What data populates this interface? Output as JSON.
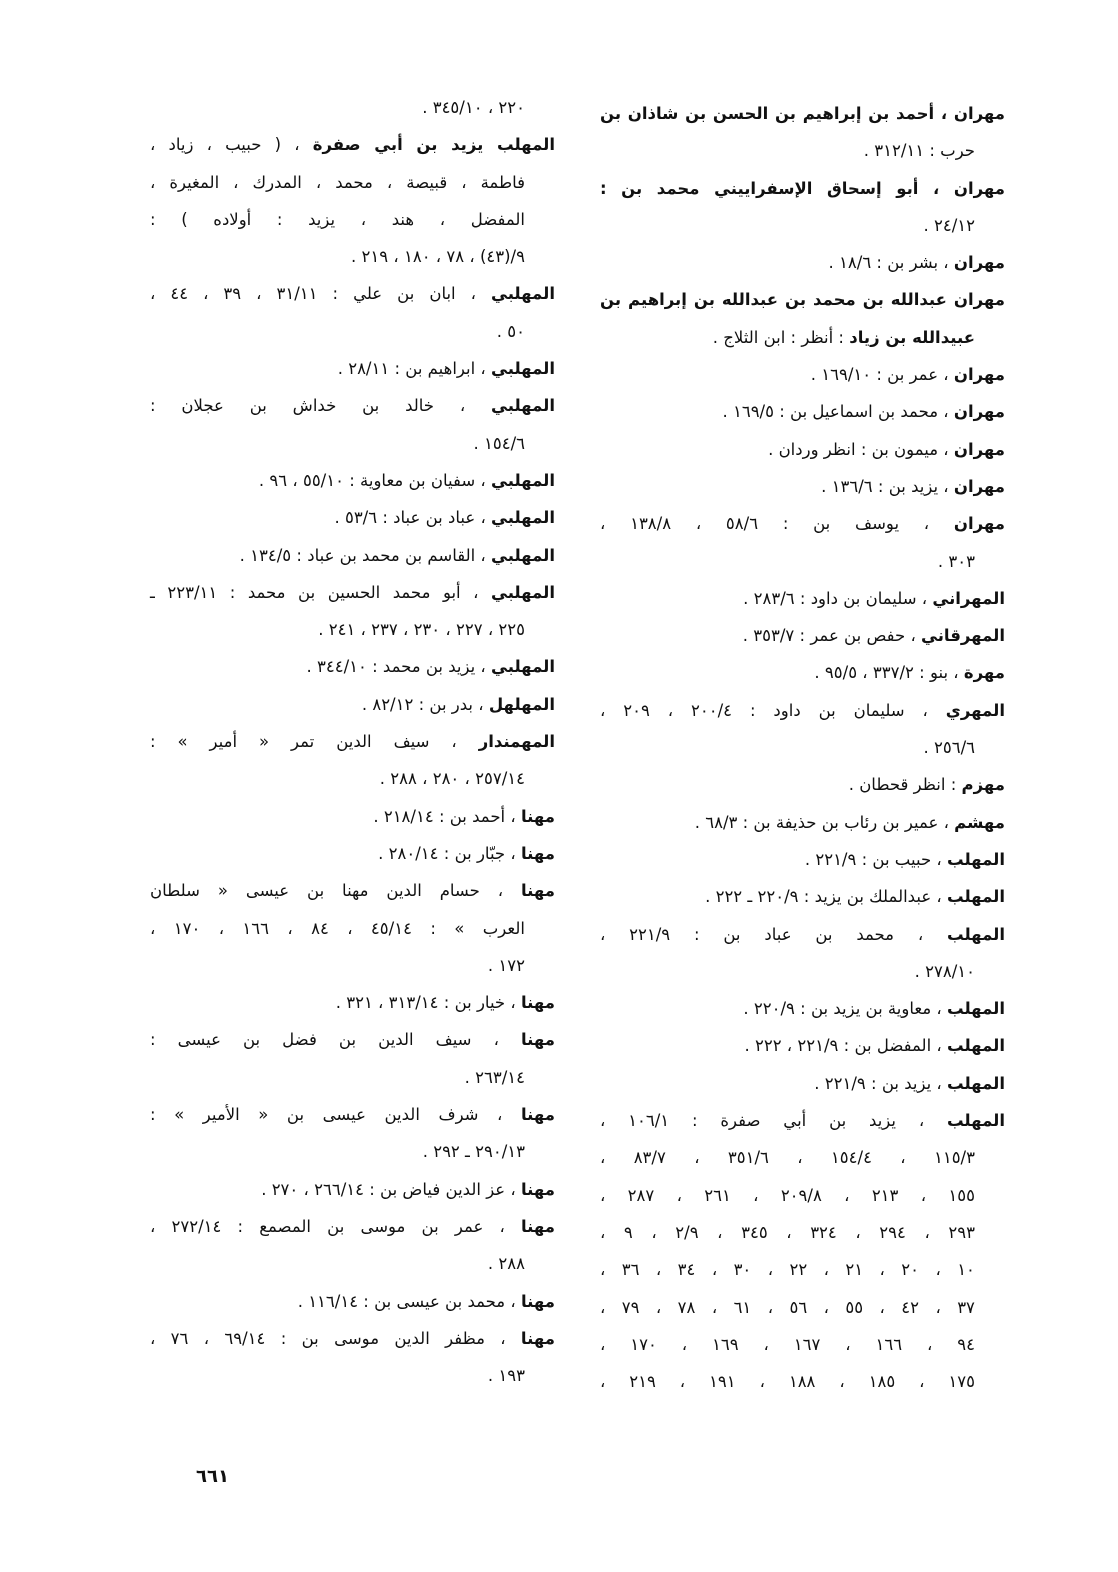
{
  "columns": {
    "right": [
      {
        "head": "مهران ، أحمد بن إبراهيم بن الحسن بن شاذان بن",
        "text": "",
        "cont": [
          "حرب : ٣١٢/١١ ."
        ]
      },
      {
        "head": "مهران ، أبو إسحاق الإسفراييني محمد بن :",
        "text": "",
        "cont": [
          "٢٤/١٢ ."
        ]
      },
      {
        "head": "مهران",
        "text": " ، بشر بن : ١٨/٦ .",
        "cont": []
      },
      {
        "head": "مهران عبدالله بن محمد بن عبدالله بن إبراهيم بن",
        "text": "",
        "cont": [
          {
            "b": "عبيدالله بن زياد",
            "t": " : أنظر : ابن الثلاج ."
          }
        ]
      },
      {
        "head": "مهران",
        "text": " ، عمر بن : ١٦٩/١٠ .",
        "cont": []
      },
      {
        "head": "مهران",
        "text": " ، محمد بن اسماعيل بن : ١٦٩/٥ .",
        "cont": []
      },
      {
        "head": "مهران",
        "text": " ، ميمون بن : انظر وردان .",
        "cont": []
      },
      {
        "head": "مهران",
        "text": " ، يزيد بن : ١٣٦/٦ .",
        "cont": []
      },
      {
        "head": "مهران",
        "text": " ، يوسف بن : ٥٨/٦ ، ١٣٨/٨ ،",
        "cont": [
          "٣٠٣ ."
        ]
      },
      {
        "head": "المهراني",
        "text": " ، سليمان بن داود : ٢٨٣/٦ .",
        "cont": []
      },
      {
        "head": "المهرقاني",
        "text": " ، حفص بن عمر : ٣٥٣/٧ .",
        "cont": []
      },
      {
        "head": "مهرة",
        "text": " ، بنو : ٣٣٧/٢ ، ٩٥/٥ .",
        "cont": []
      },
      {
        "head": "المهري",
        "text": " ، سليمان بن داود : ٢٠٠/٤ ، ٢٠٩ ،",
        "cont": [
          "٢٥٦/٦ ."
        ]
      },
      {
        "head": "مهزم",
        "text": " : انظر قحطان .",
        "cont": []
      },
      {
        "head": "مهشم",
        "text": " ، عمير بن رئاب بن حذيفة بن : ٦٨/٣ .",
        "cont": []
      },
      {
        "head": "المهلب",
        "text": " ، حبيب بن : ٢٢١/٩ .",
        "cont": []
      },
      {
        "head": "المهلب",
        "text": " ، عبدالملك بن يزيد : ٢٢٠/٩ ـ ٢٢٢ .",
        "cont": []
      },
      {
        "head": "المهلب",
        "text": " ، محمد بن عباد بن : ٢٢١/٩ ،",
        "cont": [
          "٢٧٨/١٠ ."
        ]
      },
      {
        "head": "المهلب",
        "text": " ، معاوية بن يزيد بن : ٢٢٠/٩ .",
        "cont": []
      },
      {
        "head": "المهلب",
        "text": " ، المفضل بن : ٢٢١/٩ ، ٢٢٢ .",
        "cont": []
      },
      {
        "head": "المهلب",
        "text": " ، يزيد بن : ٢٢١/٩ .",
        "cont": []
      },
      {
        "head": "المهلب",
        "text": " ، يزيد بن أبي صفرة : ١٠٦/١ ،",
        "cont": [
          "١١٥/٣ ، ١٥٤/٤ ، ٣٥١/٦ ، ٨٣/٧ ،",
          "١٥٥ ، ٢١٣ ، ٢٠٩/٨ ، ٢٦١ ، ٢٨٧ ،",
          "٢٩٣ ، ٢٩٤ ، ٣٢٤ ، ٣٤٥ ، ٢/٩ ، ٩ ،",
          "١٠ ، ٢٠ ، ٢١ ، ٢٢ ، ٣٠ ، ٣٤ ، ٣٦ ،",
          "٣٧ ، ٤٢ ، ٥٥ ، ٥٦ ، ٦١ ، ٧٨ ، ٧٩ ،",
          "٩٤ ، ١٦٦ ، ١٦٧ ، ١٦٩ ، ١٧٠ ،",
          "١٧٥ ، ١٨٥ ، ١٨٨ ، ١٩١ ، ٢١٩ ،"
        ]
      }
    ],
    "left": [
      {
        "head": "",
        "text": "",
        "cont": [
          "٢٢٠ ، ٣٤٥/١٠ ."
        ]
      },
      {
        "head": "المهلب يزيد بن أبي صفرة",
        "text": " ، ( حبيب ، زياد ،",
        "cont": [
          "فاطمة ، قبيصة ، محمد ، المدرك ، المغيرة ،",
          "المفضل ، هند ، يزيد : أولاده ) :",
          "٩/(٤٣) ، ٧٨ ، ١٨٠ ، ٢١٩ ."
        ]
      },
      {
        "head": "المهلبي",
        "text": " ، ابان بن علي : ٣١/١١ ، ٣٩ ، ٤٤ ،",
        "cont": [
          "٥٠ ."
        ]
      },
      {
        "head": "المهلبي",
        "text": " ، ابراهيم بن : ٢٨/١١ .",
        "cont": []
      },
      {
        "head": "المهلبي",
        "text": " ، خالد بن خداش بن عجلان :",
        "cont": [
          "١٥٤/٦ ."
        ]
      },
      {
        "head": "المهلبي",
        "text": " ، سفيان بن معاوية : ٥٥/١٠ ، ٩٦ .",
        "cont": []
      },
      {
        "head": "المهلبي",
        "text": " ، عباد بن عباد : ٥٣/٦ .",
        "cont": []
      },
      {
        "head": "المهلبي",
        "text": " ، القاسم بن محمد بن عباد : ١٣٤/٥ .",
        "cont": []
      },
      {
        "head": "المهلبي",
        "text": " ، أبو محمد الحسين بن محمد : ٢٢٣/١١ ـ",
        "cont": [
          "٢٢٥ ، ٢٢٧ ، ٢٣٠ ، ٢٣٧ ، ٢٤١ ."
        ]
      },
      {
        "head": "المهلبي",
        "text": " ، يزيد بن محمد : ٣٤٤/١٠ .",
        "cont": []
      },
      {
        "head": "المهلهل",
        "text": " ، بدر بن : ٨٢/١٢ .",
        "cont": []
      },
      {
        "head": "المهمندار",
        "text": " ، سيف الدين تمر « أمير » :",
        "cont": [
          "٢٥٧/١٤ ، ٢٨٠ ، ٢٨٨ ."
        ]
      },
      {
        "head": "مهنا",
        "text": " ، أحمد بن : ٢١٨/١٤ .",
        "cont": []
      },
      {
        "head": "مهنا",
        "text": " ، جبّار بن : ٢٨٠/١٤ .",
        "cont": []
      },
      {
        "head": "مهنا",
        "text": " ، حسام الدين مهنا بن عيسى « سلطان",
        "cont": [
          "العرب » : ٤٥/١٤ ، ٨٤ ، ١٦٦ ، ١٧٠ ،",
          "١٧٢ ."
        ]
      },
      {
        "head": "مهنا",
        "text": " ، خيار بن : ٣١٣/١٤ ، ٣٢١ .",
        "cont": []
      },
      {
        "head": "مهنا",
        "text": " ، سيف الدين بن فضل بن عيسى :",
        "cont": [
          "٢٦٣/١٤ ."
        ]
      },
      {
        "head": "مهنا",
        "text": " ، شرف الدين عيسى بن « الأمير » :",
        "cont": [
          "٢٩٠/١٣ ـ ٢٩٢ ."
        ]
      },
      {
        "head": "مهنا",
        "text": " ، عز الدين فياض بن : ٢٦٦/١٤ ، ٢٧٠ .",
        "cont": []
      },
      {
        "head": "مهنا",
        "text": " ، عمر بن موسى بن المصمع : ٢٧٢/١٤ ،",
        "cont": [
          "٢٨٨ ."
        ]
      },
      {
        "head": "مهنا",
        "text": " ، محمد بن عيسى بن : ١١٦/١٤ .",
        "cont": []
      },
      {
        "head": "مهنا",
        "text": " ، مظفر الدين موسى بن : ٦٩/١٤ ، ٧٦ ،",
        "cont": [
          "١٩٣ ."
        ]
      }
    ]
  },
  "page_number": "٦٦١"
}
